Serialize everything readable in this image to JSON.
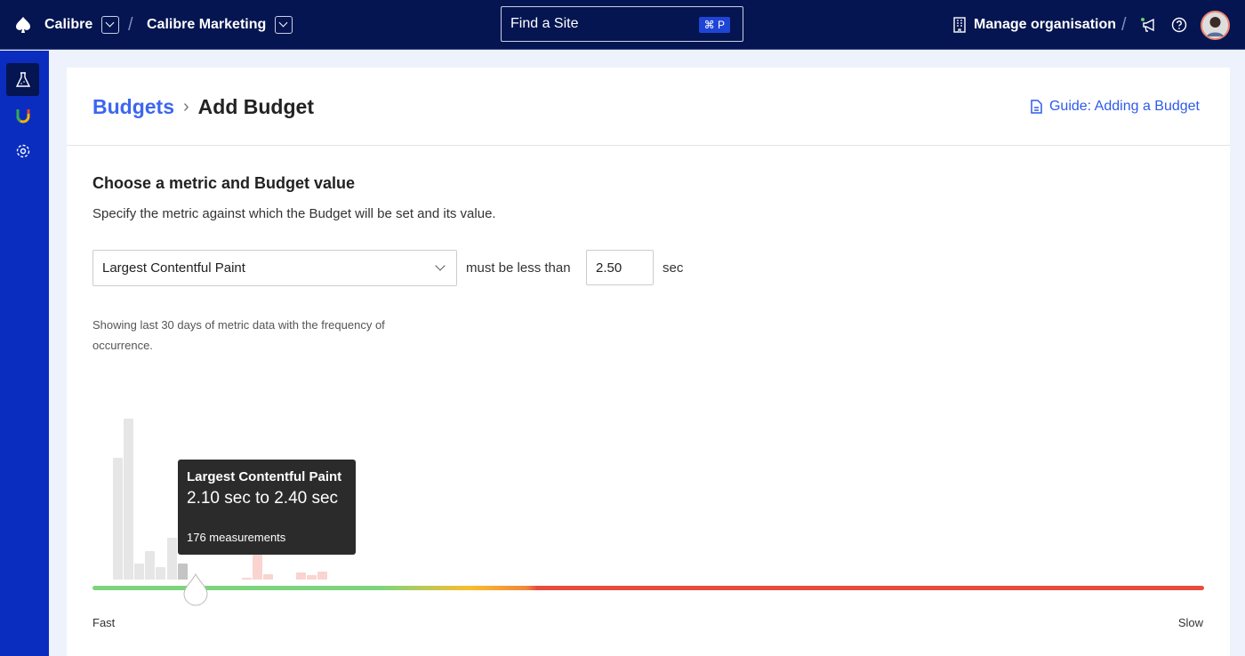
{
  "topbar": {
    "org": "Calibre",
    "team": "Calibre Marketing",
    "separator": "/",
    "search_placeholder": "Find a Site",
    "search_shortcut": "⌘ P",
    "manage_org": "Manage organisation",
    "icons": [
      "spade-logo-icon",
      "chevron-down-icon",
      "building-icon",
      "megaphone-icon",
      "help-icon",
      "avatar"
    ]
  },
  "sidebar": {
    "items": [
      {
        "icon": "flask-icon",
        "active": true
      },
      {
        "icon": "integration-logo-icon"
      },
      {
        "icon": "gear-icon"
      }
    ]
  },
  "page": {
    "breadcrumb_parent": "Budgets",
    "breadcrumb_current": "Add Budget",
    "guide_link": "Guide: Adding a Budget"
  },
  "form": {
    "heading": "Choose a metric and Budget value",
    "description": "Specify the metric against which the Budget will be set and its value.",
    "metric_selected": "Largest Contentful Paint",
    "comparator": "must be less than",
    "value": "2.50",
    "unit": "sec",
    "note": "Showing last 30 days of metric data with the frequency of occurrence."
  },
  "chart_data": {
    "type": "bar",
    "title": "",
    "bin_width_sec": 0.3,
    "bins": [
      {
        "start": 0.3,
        "value": 1340
      },
      {
        "start": 0.6,
        "value": 1770
      },
      {
        "start": 0.9,
        "value": 176
      },
      {
        "start": 1.2,
        "value": 313
      },
      {
        "start": 1.5,
        "value": 137
      },
      {
        "start": 1.8,
        "value": 460
      },
      {
        "start": 2.1,
        "value": 176,
        "selected": true
      },
      {
        "start": 3.9,
        "value": 20,
        "over_budget": true
      },
      {
        "start": 4.2,
        "value": 274,
        "over_budget": true
      },
      {
        "start": 4.5,
        "value": 59,
        "over_budget": true
      },
      {
        "start": 5.4,
        "value": 78,
        "over_budget": true
      },
      {
        "start": 5.7,
        "value": 49,
        "over_budget": true
      },
      {
        "start": 6.0,
        "value": 88,
        "over_budget": true
      }
    ],
    "budget_value": 2.5,
    "axis_left_label": "Fast",
    "axis_right_label": "Slow",
    "colors": {
      "bar": "#e6e6e6",
      "selected": "#c4c4c4",
      "over": "#f9d4d0",
      "fast": "#7ed47e",
      "mid": "#fbbc2c",
      "slow": "#e84c3d"
    }
  },
  "tooltip": {
    "title": "Largest Contentful Paint",
    "range": "2.10 sec to 2.40 sec",
    "count": "176 measurements"
  }
}
